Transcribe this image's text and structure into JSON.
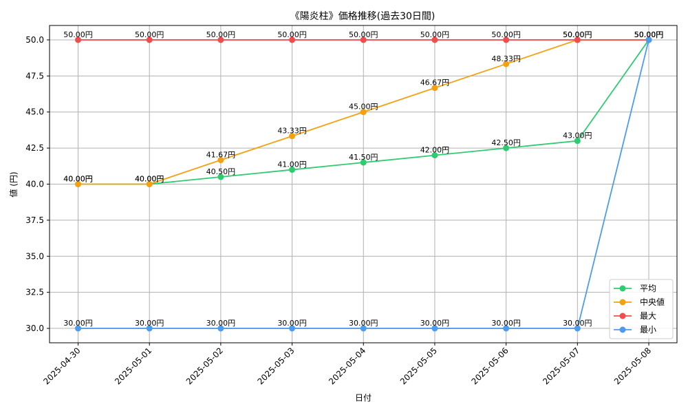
{
  "chart_data": {
    "type": "line",
    "title": "《陽炎柱》価格推移(過去30日間)",
    "xlabel": "日付",
    "ylabel": "値 (円)",
    "ylim": [
      29,
      51
    ],
    "yticks": [
      "30.0",
      "32.5",
      "35.0",
      "37.5",
      "40.0",
      "42.5",
      "45.0",
      "47.5",
      "50.0"
    ],
    "ytick_values": [
      30,
      32.5,
      35,
      37.5,
      40,
      42.5,
      45,
      47.5,
      50
    ],
    "categories": [
      "2025-04-30",
      "2025-05-01",
      "2025-05-02",
      "2025-05-03",
      "2025-05-04",
      "2025-05-05",
      "2025-05-06",
      "2025-05-07",
      "2025-05-08"
    ],
    "grid": true,
    "legend_position": "bottom-right",
    "series": [
      {
        "name": "平均",
        "color": "#2ecc71",
        "values": [
          40.0,
          40.0,
          40.5,
          41.0,
          41.5,
          42.0,
          42.5,
          43.0,
          50.0
        ],
        "labels": [
          "40.00円",
          "40.00円",
          "40.50円",
          "41.00円",
          "41.50円",
          "42.00円",
          "42.50円",
          "43.00円",
          "50.00円"
        ]
      },
      {
        "name": "中央値",
        "color": "#f5a00f",
        "values": [
          40.0,
          40.0,
          41.67,
          43.33,
          45.0,
          46.67,
          48.33,
          50.0,
          50.0
        ],
        "labels": [
          "40.00円",
          "40.00円",
          "41.67円",
          "43.33円",
          "45.00円",
          "46.67円",
          "48.33円",
          "50.00円",
          "50.00円"
        ]
      },
      {
        "name": "最大",
        "color": "#f24c4c",
        "values": [
          50.0,
          50.0,
          50.0,
          50.0,
          50.0,
          50.0,
          50.0,
          50.0,
          50.0
        ],
        "labels": [
          "50.00円",
          "50.00円",
          "50.00円",
          "50.00円",
          "50.00円",
          "50.00円",
          "50.00円",
          "50.00円",
          "50.00円"
        ]
      },
      {
        "name": "最小",
        "color": "#4b9bf0",
        "values": [
          30.0,
          30.0,
          30.0,
          30.0,
          30.0,
          30.0,
          30.0,
          30.0,
          50.0
        ],
        "labels": [
          "30.00円",
          "30.00円",
          "30.00円",
          "30.00円",
          "30.00円",
          "30.00円",
          "30.00円",
          "30.00円",
          "50.00円"
        ]
      }
    ]
  }
}
